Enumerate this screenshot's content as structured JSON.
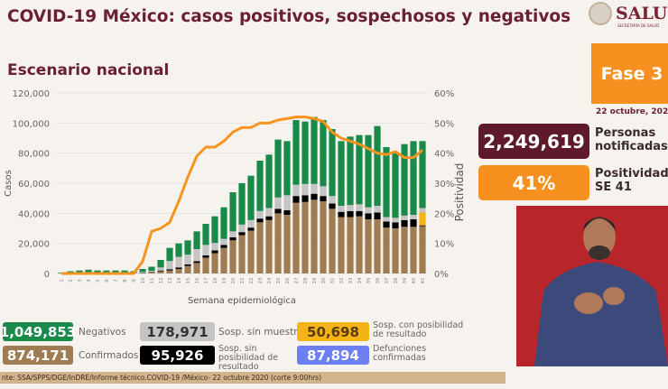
{
  "header": {
    "title": "COVID-19 México: casos positivos, sospechosos y negativos",
    "subtitle": "Escenario nacional",
    "logo_text": "SALUD",
    "logo_subtext": "SECRETARÍA DE SALUD"
  },
  "side": {
    "phase": "Fase 3",
    "date": "22 octubre, 2020",
    "notified": {
      "value": "2,249,619",
      "label1": "Personas",
      "label2": "notificadas",
      "color": "#5e1a2b"
    },
    "positivity": {
      "value": "41%",
      "label1": "Positividad",
      "label2": "SE 41",
      "color": "#f7901e"
    }
  },
  "legend": [
    {
      "value": "1,049,853",
      "label": "Negativos",
      "color": "#1a8a4a"
    },
    {
      "value": "178,971",
      "label": "Sosp. sin muestra",
      "color": "#c4c4c4"
    },
    {
      "value": "50,698",
      "label": "Sosp. con posibilidad de resultado",
      "color": "#f5b415"
    },
    {
      "value": "874,171",
      "label": "Confirmados",
      "color": "#a07c52"
    },
    {
      "value": "95,926",
      "label": "Sosp. sin posibilidad de resultado",
      "color": "#000000"
    },
    {
      "value": "87,894",
      "label": "Defunciones confirmadas",
      "color": "#6b7ff0"
    }
  ],
  "footer": "nte: SSA/SPPS/DGE/InDRE/Informe técnico.COVID-19 /México- 22 octubre 2020 (corte 9:00hrs)",
  "chart_data": {
    "type": "bar",
    "stacked": true,
    "xlabel": "Semana epidemiológica",
    "ylabel": "Casos",
    "y2label": "Positividad",
    "ylim": [
      0,
      120000
    ],
    "y2lim": [
      0,
      60
    ],
    "yticks": [
      "0",
      "20,000",
      "40,000",
      "60,000",
      "80,000",
      "100,000",
      "120,000"
    ],
    "y2ticks": [
      "0%",
      "10%",
      "20%",
      "30%",
      "40%",
      "50%",
      "60%"
    ],
    "categories": [
      "1",
      "2",
      "3",
      "4",
      "5",
      "6",
      "7",
      "8",
      "9",
      "10",
      "11",
      "12",
      "13",
      "14",
      "15",
      "16",
      "17",
      "18",
      "19",
      "20",
      "21",
      "22",
      "23",
      "24",
      "25",
      "26",
      "27",
      "28",
      "29",
      "30",
      "31",
      "32",
      "33",
      "34",
      "35",
      "36",
      "37",
      "38",
      "39",
      "40",
      "41"
    ],
    "series": [
      {
        "name": "Confirmados",
        "color": "#a07c52",
        "values": [
          0,
          0,
          0,
          0,
          0,
          0,
          0,
          0,
          0,
          300,
          800,
          1500,
          2000,
          3000,
          5000,
          7000,
          10500,
          13500,
          17000,
          22000,
          25500,
          28500,
          34000,
          35500,
          40000,
          39000,
          47000,
          47500,
          49000,
          48000,
          43000,
          37500,
          37500,
          38000,
          36000,
          36000,
          30500,
          30000,
          31000,
          31000,
          31500
        ]
      },
      {
        "name": "Sosp. sin posibilidad de resultado",
        "color": "#000000",
        "values": [
          0,
          0,
          0,
          0,
          0,
          0,
          0,
          0,
          0,
          200,
          300,
          500,
          800,
          1000,
          1000,
          1200,
          1500,
          1800,
          2000,
          2000,
          2000,
          2000,
          2500,
          2500,
          3000,
          3000,
          4500,
          4500,
          4000,
          3500,
          3500,
          3500,
          4000,
          3500,
          4000,
          4500,
          4000,
          4000,
          4500,
          5000,
          500
        ]
      },
      {
        "name": "Sosp. con posibilidad de resultado",
        "color": "#f5b415",
        "values": [
          0,
          0,
          0,
          0,
          0,
          0,
          0,
          0,
          0,
          0,
          0,
          0,
          0,
          0,
          0,
          0,
          0,
          0,
          0,
          0,
          0,
          0,
          0,
          0,
          0,
          0,
          0,
          0,
          0,
          0,
          0,
          0,
          0,
          0,
          0,
          0,
          0,
          0,
          0,
          0,
          8500
        ]
      },
      {
        "name": "Sosp. sin muestra",
        "color": "#c4c4c4",
        "values": [
          0,
          200,
          300,
          300,
          300,
          300,
          300,
          300,
          300,
          500,
          700,
          2000,
          5500,
          7000,
          6500,
          8000,
          7000,
          5000,
          4000,
          4000,
          5000,
          5000,
          5000,
          5500,
          7500,
          10000,
          7500,
          7500,
          6500,
          6500,
          5000,
          4000,
          4000,
          4500,
          4000,
          4500,
          3000,
          3000,
          3000,
          3000,
          3000
        ]
      },
      {
        "name": "Negativos",
        "color": "#1a8a4a",
        "values": [
          500,
          1300,
          1700,
          2200,
          1700,
          1700,
          1700,
          1700,
          1200,
          2000,
          2700,
          5000,
          8700,
          9000,
          9500,
          11800,
          14000,
          17700,
          21000,
          26000,
          27500,
          29500,
          33500,
          35500,
          38500,
          36000,
          43000,
          41500,
          44500,
          44000,
          44500,
          43000,
          45500,
          46000,
          48000,
          53000,
          46500,
          43000,
          47500,
          49000,
          44500
        ]
      },
      {
        "name": "Positividad",
        "axis": "right",
        "type": "line",
        "color": "#f7941d",
        "values": [
          0,
          0,
          0,
          0,
          0,
          0,
          0,
          0,
          0,
          4,
          14,
          15,
          17,
          24,
          32,
          39,
          42,
          42,
          44,
          47,
          48.5,
          48.5,
          50,
          50,
          51,
          51.5,
          52,
          52,
          51.5,
          50.5,
          47,
          45,
          44,
          43,
          41.5,
          40,
          39.5,
          40.5,
          38.5,
          38.5,
          41
        ]
      }
    ]
  }
}
